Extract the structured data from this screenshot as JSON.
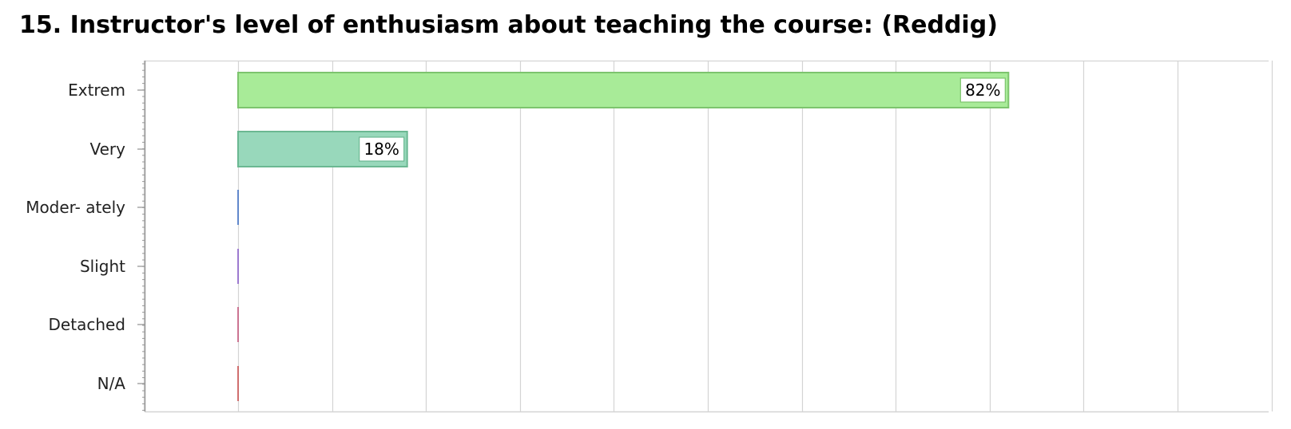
{
  "title": "15. Instructor's level of enthusiasm about teaching the course: (Reddig)",
  "chart_data": {
    "type": "bar",
    "orientation": "horizontal",
    "title": "15. Instructor's level of enthusiasm about teaching the course: (Reddig)",
    "xlabel": "",
    "ylabel": "",
    "categories": [
      "Extrem",
      "Very",
      "Moder- ately",
      "Slight",
      "Detached",
      "N/A"
    ],
    "values": [
      82,
      18,
      0,
      0,
      0,
      0
    ],
    "data_labels": [
      "82%",
      "18%",
      "",
      "",
      "",
      ""
    ],
    "unit": "%",
    "xlim": [
      -10,
      110
    ],
    "grid": true,
    "legend": "none",
    "colors": {
      "fills": [
        "#a8eb98",
        "#98d8bb",
        "#8fb0e6",
        "#b79ae0",
        "#e29bb5",
        "#ea9c9c"
      ],
      "strokes": [
        "#7dc46e",
        "#6bb892",
        "#3f6fc4",
        "#8a5fc9",
        "#c4567c",
        "#c95050"
      ],
      "grid": "#d4d4d4",
      "axis": "#999999"
    }
  }
}
